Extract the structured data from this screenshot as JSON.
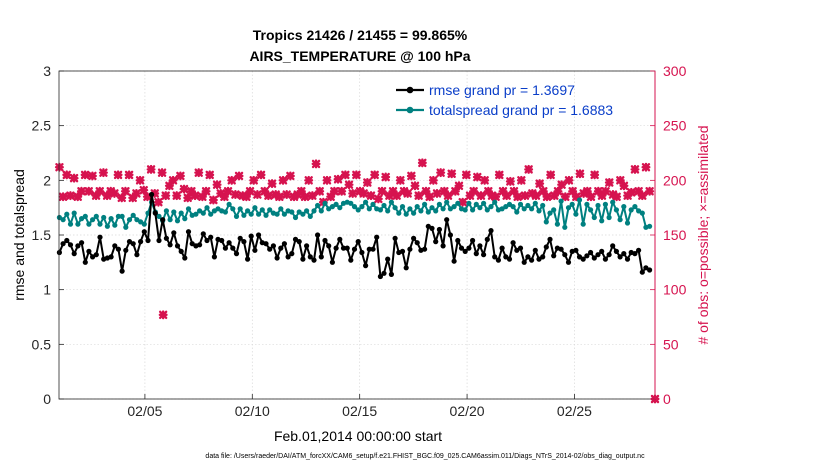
{
  "chart_data": {
    "type": "line",
    "title": "Tropics 21426 / 21455 = 99.865%",
    "subtitle": "AIRS_TEMPERATURE @ 100 hPa",
    "xlabel": "Feb.01,2014 00:00:00 start",
    "ylabel_left": "rmse and totalspread",
    "ylabel_right": "# of obs: o=possible; ×=assimilated",
    "footnote": "data file: /Users/raeder/DAI/ATM_forcXX/CAM6_setup/f.e21.FHIST_BGC.f09_025.CAM6assim.011/Diags_NTrS_2014-02/obs_diag_output.nc",
    "x_ticks": [
      "02/05",
      "02/10",
      "02/15",
      "02/20",
      "02/25"
    ],
    "x_tick_days": [
      5,
      10,
      15,
      20,
      25
    ],
    "xlim_days": [
      1,
      28.75
    ],
    "ylim_left": [
      0,
      3
    ],
    "yticks_left": [
      "0",
      "0.5",
      "1",
      "1.5",
      "2",
      "2.5",
      "3"
    ],
    "ylim_right": [
      0,
      300
    ],
    "yticks_right": [
      "0",
      "50",
      "100",
      "150",
      "200",
      "250",
      "300"
    ],
    "grid": true,
    "legend_position": "top-right",
    "colors": {
      "rmse": "#000000",
      "spread": "#008080",
      "obs": "#d6134f",
      "right_axis": "#d6134f",
      "legend_text": "#0a3ec9"
    },
    "series": [
      {
        "name": "rmse grand pr = 1.3697",
        "axis": "left",
        "marker": "circle",
        "values": [
          1.34,
          1.42,
          1.45,
          1.41,
          1.33,
          1.4,
          1.43,
          1.25,
          1.35,
          1.3,
          1.32,
          1.48,
          1.28,
          1.29,
          1.3,
          1.4,
          1.37,
          1.17,
          1.36,
          1.44,
          1.42,
          1.32,
          1.44,
          1.53,
          1.45,
          1.87,
          1.7,
          1.45,
          1.64,
          1.47,
          1.41,
          1.52,
          1.4,
          1.35,
          1.29,
          1.53,
          1.42,
          1.4,
          1.41,
          1.51,
          1.45,
          1.48,
          1.3,
          1.46,
          1.45,
          1.38,
          1.43,
          1.38,
          1.33,
          1.47,
          1.44,
          1.28,
          1.49,
          1.36,
          1.5,
          1.43,
          1.42,
          1.37,
          1.4,
          1.29,
          1.38,
          1.42,
          1.3,
          1.33,
          1.46,
          1.44,
          1.28,
          1.4,
          1.3,
          1.27,
          1.5,
          1.3,
          1.45,
          1.4,
          1.25,
          1.38,
          1.46,
          1.38,
          1.38,
          1.27,
          1.37,
          1.44,
          1.34,
          1.22,
          1.37,
          1.37,
          1.48,
          1.12,
          1.15,
          1.28,
          1.14,
          1.47,
          1.34,
          1.35,
          1.2,
          1.37,
          1.47,
          1.43,
          1.36,
          1.37,
          1.58,
          1.56,
          1.44,
          1.55,
          1.4,
          1.64,
          1.5,
          1.26,
          1.45,
          1.38,
          1.35,
          1.38,
          1.45,
          1.33,
          1.4,
          1.32,
          1.46,
          1.54,
          1.3,
          1.27,
          1.38,
          1.3,
          1.28,
          1.43,
          1.36,
          1.38,
          1.25,
          1.3,
          1.27,
          1.36,
          1.28,
          1.3,
          1.39,
          1.46,
          1.31,
          1.38,
          1.37,
          1.32,
          1.25,
          1.35,
          1.36,
          1.3,
          1.28,
          1.31,
          1.34,
          1.29,
          1.32,
          1.35,
          1.28,
          1.32,
          1.4,
          1.35,
          1.3,
          1.33,
          1.28,
          1.34,
          1.33,
          1.36,
          1.16,
          1.2,
          1.18
        ]
      },
      {
        "name": "totalspread grand pr = 1.6883",
        "axis": "left",
        "marker": "circle",
        "values": [
          1.66,
          1.64,
          1.69,
          1.6,
          1.7,
          1.6,
          1.65,
          1.67,
          1.6,
          1.64,
          1.67,
          1.6,
          1.66,
          1.58,
          1.65,
          1.59,
          1.67,
          1.67,
          1.57,
          1.64,
          1.68,
          1.64,
          1.62,
          1.6,
          1.7,
          1.8,
          1.71,
          1.67,
          1.63,
          1.72,
          1.64,
          1.71,
          1.63,
          1.7,
          1.65,
          1.74,
          1.68,
          1.69,
          1.72,
          1.7,
          1.75,
          1.69,
          1.72,
          1.74,
          1.72,
          1.71,
          1.78,
          1.74,
          1.67,
          1.74,
          1.68,
          1.72,
          1.69,
          1.75,
          1.69,
          1.73,
          1.68,
          1.73,
          1.7,
          1.69,
          1.74,
          1.69,
          1.72,
          1.71,
          1.66,
          1.71,
          1.69,
          1.72,
          1.67,
          1.72,
          1.77,
          1.72,
          1.79,
          1.74,
          1.76,
          1.78,
          1.75,
          1.79,
          1.8,
          1.79,
          1.76,
          1.73,
          1.76,
          1.8,
          1.74,
          1.78,
          1.74,
          1.73,
          1.77,
          1.72,
          1.8,
          1.75,
          1.7,
          1.76,
          1.69,
          1.74,
          1.7,
          1.76,
          1.72,
          1.78,
          1.71,
          1.75,
          1.72,
          1.78,
          1.74,
          1.8,
          1.74,
          1.76,
          1.79,
          1.74,
          1.73,
          1.79,
          1.73,
          1.78,
          1.75,
          1.79,
          1.73,
          1.76,
          1.8,
          1.73,
          1.74,
          1.76,
          1.78,
          1.76,
          1.71,
          1.78,
          1.74,
          1.77,
          1.74,
          1.79,
          1.72,
          1.77,
          1.62,
          1.7,
          1.73,
          1.6,
          1.81,
          1.57,
          1.75,
          1.78,
          1.69,
          1.82,
          1.6,
          1.78,
          1.73,
          1.66,
          1.77,
          1.63,
          1.78,
          1.66,
          1.8,
          1.73,
          1.64,
          1.76,
          1.61,
          1.73,
          1.76,
          1.72,
          1.7,
          1.57,
          1.58
        ]
      },
      {
        "name": "# of obs assimilated",
        "axis": "right",
        "marker": "x",
        "values": [
          212,
          185,
          205,
          186,
          202,
          185,
          190,
          205,
          190,
          204,
          186,
          190,
          207,
          186,
          190,
          188,
          205,
          184,
          190,
          205,
          184,
          188,
          200,
          191,
          185,
          210,
          188,
          180,
          207,
          186,
          195,
          200,
          186,
          204,
          192,
          184,
          190,
          186,
          207,
          185,
          190,
          205,
          182,
          196,
          188,
          185,
          190,
          200,
          187,
          204,
          186,
          185,
          190,
          200,
          187,
          205,
          190,
          186,
          197,
          187,
          185,
          200,
          187,
          204,
          185,
          187,
          190,
          185,
          200,
          186,
          215,
          190,
          180,
          200,
          185,
          190,
          201,
          190,
          205,
          196,
          188,
          205,
          190,
          188,
          198,
          186,
          205,
          183,
          190,
          203,
          186,
          190,
          186,
          200,
          190,
          188,
          204,
          195,
          186,
          216,
          190,
          185,
          200,
          188,
          207,
          190,
          186,
          206,
          190,
          195,
          180,
          205,
          186,
          190,
          203,
          186,
          200,
          190,
          186,
          185,
          205,
          190,
          186,
          199,
          190,
          185,
          200,
          186,
          210,
          188,
          186,
          197,
          190,
          185,
          205,
          186,
          190,
          196,
          185,
          200,
          190,
          185,
          206,
          188,
          190,
          185,
          205,
          190,
          186,
          190,
          198,
          187,
          185,
          200,
          195,
          186,
          189,
          210,
          190,
          186,
          212,
          190
        ]
      }
    ],
    "outlier": {
      "day": 5.85,
      "value": 77,
      "label": "assimilated"
    },
    "endpoint": {
      "day": 28.75,
      "value": 0
    }
  }
}
